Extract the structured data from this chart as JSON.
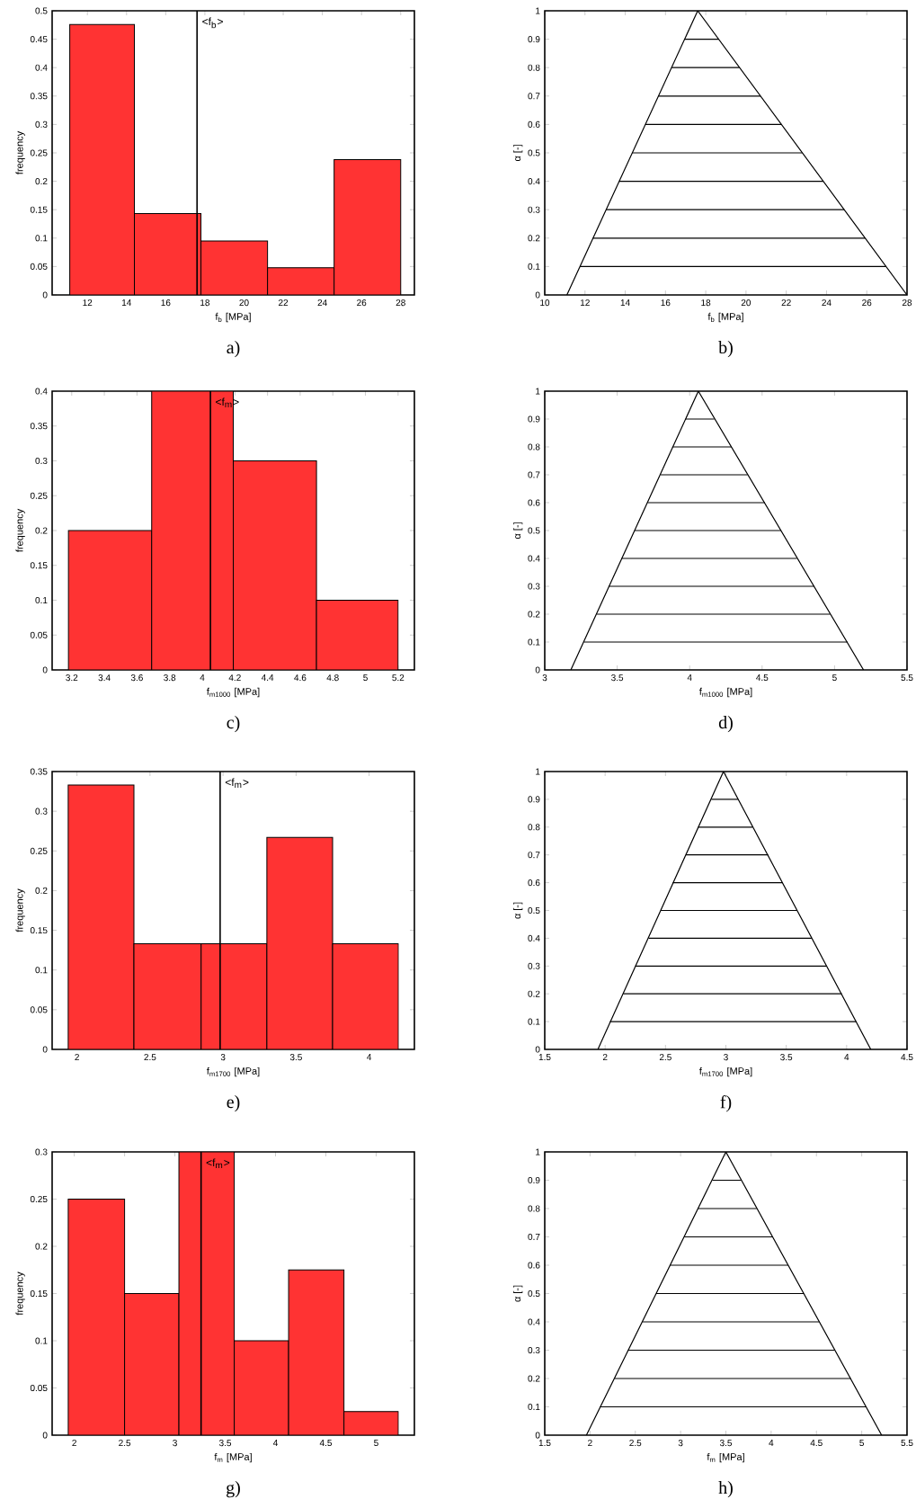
{
  "chart_data": [
    {
      "type": "histogram",
      "bins": [
        11.1,
        14.4,
        17.8,
        21.2,
        24.6,
        28.0
      ],
      "values": [
        0.476,
        0.143,
        0.095,
        0.048,
        0.238
      ],
      "color": "#ff3333",
      "xlim": [
        10.2,
        28.7
      ],
      "xticks": [
        12,
        14,
        16,
        18,
        20,
        22,
        24,
        26,
        28
      ],
      "ylim": [
        0,
        0.5
      ],
      "yticks": [
        0,
        0.05,
        0.1,
        0.15,
        0.2,
        0.25,
        0.3,
        0.35,
        0.4,
        0.45,
        0.5
      ],
      "xlabel": "f$_{b}$ [MPa]",
      "ylabel": "frequency",
      "ref_lines": [
        {
          "axis": "x",
          "value": 17.6,
          "label": "<f$_{b}$>"
        }
      ],
      "annotations": [
        "a)"
      ]
    },
    {
      "type": "line",
      "series": [
        {
          "color": "#000000",
          "x": [
            11.1,
            17.6,
            28.0
          ],
          "values": [
            0,
            1,
            0
          ]
        },
        {
          "color": "#000000",
          "x": [
            11.75,
            26.96
          ],
          "values": [
            0.1,
            0.1
          ]
        },
        {
          "color": "#000000",
          "x": [
            12.4,
            25.92
          ],
          "values": [
            0.2,
            0.2
          ]
        },
        {
          "color": "#000000",
          "x": [
            13.05,
            24.88
          ],
          "values": [
            0.3,
            0.3
          ]
        },
        {
          "color": "#000000",
          "x": [
            13.7,
            23.84
          ],
          "values": [
            0.4,
            0.4
          ]
        },
        {
          "color": "#000000",
          "x": [
            14.35,
            22.8
          ],
          "values": [
            0.5,
            0.5
          ]
        },
        {
          "color": "#000000",
          "x": [
            15.0,
            21.76
          ],
          "values": [
            0.6,
            0.6
          ]
        },
        {
          "color": "#000000",
          "x": [
            15.65,
            20.72
          ],
          "values": [
            0.7,
            0.7
          ]
        },
        {
          "color": "#000000",
          "x": [
            16.3,
            19.68
          ],
          "values": [
            0.8,
            0.8
          ]
        },
        {
          "color": "#000000",
          "x": [
            16.95,
            18.64
          ],
          "values": [
            0.9,
            0.9
          ]
        }
      ],
      "xlim": [
        10,
        28
      ],
      "xticks": [
        10,
        12,
        14,
        16,
        18,
        20,
        22,
        24,
        26,
        28
      ],
      "ylim": [
        0,
        1
      ],
      "yticks": [
        0,
        0.1,
        0.2,
        0.3,
        0.4,
        0.5,
        0.6,
        0.7,
        0.8,
        0.9,
        1
      ],
      "xlabel": "f$_{b}$ [MPa]",
      "ylabel": "α [-]",
      "annotations": [
        "b)"
      ]
    },
    {
      "type": "histogram",
      "bins": [
        3.18,
        3.69,
        4.19,
        4.7,
        5.2
      ],
      "values": [
        0.2,
        0.4,
        0.3,
        0.1
      ],
      "color": "#ff3333",
      "xlim": [
        3.08,
        5.3
      ],
      "xticks": [
        3.2,
        3.4,
        3.6,
        3.8,
        4,
        4.2,
        4.4,
        4.6,
        4.8,
        5,
        5.2
      ],
      "ylim": [
        0,
        0.4
      ],
      "yticks": [
        0,
        0.05,
        0.1,
        0.15,
        0.2,
        0.25,
        0.3,
        0.35,
        0.4
      ],
      "xlabel": "f$_{m1000}$ [MPa]",
      "ylabel": "frequency",
      "ref_lines": [
        {
          "axis": "x",
          "value": 4.05,
          "label": "<f$_{m}$>"
        }
      ],
      "annotations": [
        "c)"
      ]
    },
    {
      "type": "line",
      "series": [
        {
          "color": "#000000",
          "x": [
            3.18,
            4.06,
            5.2
          ],
          "values": [
            0,
            1,
            0
          ]
        },
        {
          "color": "#000000",
          "x": [
            3.27,
            5.09
          ],
          "values": [
            0.1,
            0.1
          ]
        },
        {
          "color": "#000000",
          "x": [
            3.36,
            4.97
          ],
          "values": [
            0.2,
            0.2
          ]
        },
        {
          "color": "#000000",
          "x": [
            3.44,
            4.86
          ],
          "values": [
            0.3,
            0.3
          ]
        },
        {
          "color": "#000000",
          "x": [
            3.53,
            4.74
          ],
          "values": [
            0.4,
            0.4
          ]
        },
        {
          "color": "#000000",
          "x": [
            3.62,
            4.63
          ],
          "values": [
            0.5,
            0.5
          ]
        },
        {
          "color": "#000000",
          "x": [
            3.71,
            4.52
          ],
          "values": [
            0.6,
            0.6
          ]
        },
        {
          "color": "#000000",
          "x": [
            3.8,
            4.4
          ],
          "values": [
            0.7,
            0.7
          ]
        },
        {
          "color": "#000000",
          "x": [
            3.88,
            4.29
          ],
          "values": [
            0.8,
            0.8
          ]
        },
        {
          "color": "#000000",
          "x": [
            3.97,
            4.17
          ],
          "values": [
            0.9,
            0.9
          ]
        }
      ],
      "xlim": [
        3,
        5.5
      ],
      "xticks": [
        3,
        3.5,
        4,
        4.5,
        5,
        5.5
      ],
      "ylim": [
        0,
        1
      ],
      "yticks": [
        0,
        0.1,
        0.2,
        0.3,
        0.4,
        0.5,
        0.6,
        0.7,
        0.8,
        0.9,
        1
      ],
      "xlabel": "f$_{m1000}$ [MPa]",
      "ylabel": "α [-]",
      "annotations": [
        "d)"
      ]
    },
    {
      "type": "histogram",
      "bins": [
        1.94,
        2.39,
        2.85,
        3.3,
        3.75,
        4.2
      ],
      "values": [
        0.333,
        0.133,
        0.133,
        0.267,
        0.133
      ],
      "color": "#ff3333",
      "xlim": [
        1.83,
        4.31
      ],
      "xticks": [
        2,
        2.5,
        3,
        3.5,
        4
      ],
      "ylim": [
        0,
        0.35
      ],
      "yticks": [
        0,
        0.05,
        0.1,
        0.15,
        0.2,
        0.25,
        0.3,
        0.35
      ],
      "xlabel": "f$_{m1700}$ [MPa]",
      "ylabel": "frequency",
      "ref_lines": [
        {
          "axis": "x",
          "value": 2.98,
          "label": "<f$_{m}$>"
        }
      ],
      "annotations": [
        "e)"
      ]
    },
    {
      "type": "line",
      "series": [
        {
          "color": "#000000",
          "x": [
            1.94,
            2.98,
            4.2
          ],
          "values": [
            0,
            1,
            0
          ]
        },
        {
          "color": "#000000",
          "x": [
            2.04,
            4.08
          ],
          "values": [
            0.1,
            0.1
          ]
        },
        {
          "color": "#000000",
          "x": [
            2.15,
            3.96
          ],
          "values": [
            0.2,
            0.2
          ]
        },
        {
          "color": "#000000",
          "x": [
            2.25,
            3.83
          ],
          "values": [
            0.3,
            0.3
          ]
        },
        {
          "color": "#000000",
          "x": [
            2.36,
            3.71
          ],
          "values": [
            0.4,
            0.4
          ]
        },
        {
          "color": "#000000",
          "x": [
            2.46,
            3.59
          ],
          "values": [
            0.5,
            0.5
          ]
        },
        {
          "color": "#000000",
          "x": [
            2.56,
            3.47
          ],
          "values": [
            0.6,
            0.6
          ]
        },
        {
          "color": "#000000",
          "x": [
            2.67,
            3.35
          ],
          "values": [
            0.7,
            0.7
          ]
        },
        {
          "color": "#000000",
          "x": [
            2.77,
            3.22
          ],
          "values": [
            0.8,
            0.8
          ]
        },
        {
          "color": "#000000",
          "x": [
            2.88,
            3.1
          ],
          "values": [
            0.9,
            0.9
          ]
        }
      ],
      "xlim": [
        1.5,
        4.5
      ],
      "xticks": [
        1.5,
        2,
        2.5,
        3,
        3.5,
        4,
        4.5
      ],
      "ylim": [
        0,
        1
      ],
      "yticks": [
        0,
        0.1,
        0.2,
        0.3,
        0.4,
        0.5,
        0.6,
        0.7,
        0.8,
        0.9,
        1
      ],
      "xlabel": "f$_{m1700}$ [MPa]",
      "ylabel": "α [-]",
      "annotations": [
        "f)"
      ]
    },
    {
      "type": "histogram",
      "bins": [
        1.94,
        2.5,
        3.04,
        3.59,
        4.13,
        4.68,
        5.22
      ],
      "values": [
        0.25,
        0.15,
        0.3,
        0.1,
        0.175,
        0.025
      ],
      "color": "#ff3333",
      "xlim": [
        1.78,
        5.38
      ],
      "xticks": [
        2,
        2.5,
        3,
        3.5,
        4,
        4.5,
        5
      ],
      "ylim": [
        0,
        0.3
      ],
      "yticks": [
        0,
        0.05,
        0.1,
        0.15,
        0.2,
        0.25,
        0.3
      ],
      "xlabel": "f$_{m}$ [MPa]",
      "ylabel": "frequency",
      "ref_lines": [
        {
          "axis": "x",
          "value": 3.26,
          "label": "<f$_{m}$>"
        }
      ],
      "annotations": [
        "g)"
      ]
    },
    {
      "type": "line",
      "series": [
        {
          "color": "#000000",
          "x": [
            1.96,
            3.5,
            5.22
          ],
          "values": [
            0,
            1,
            0
          ]
        },
        {
          "color": "#000000",
          "x": [
            2.11,
            5.05
          ],
          "values": [
            0.1,
            0.1
          ]
        },
        {
          "color": "#000000",
          "x": [
            2.27,
            4.88
          ],
          "values": [
            0.2,
            0.2
          ]
        },
        {
          "color": "#000000",
          "x": [
            2.42,
            4.7
          ],
          "values": [
            0.3,
            0.3
          ]
        },
        {
          "color": "#000000",
          "x": [
            2.58,
            4.53
          ],
          "values": [
            0.4,
            0.4
          ]
        },
        {
          "color": "#000000",
          "x": [
            2.73,
            4.36
          ],
          "values": [
            0.5,
            0.5
          ]
        },
        {
          "color": "#000000",
          "x": [
            2.88,
            4.19
          ],
          "values": [
            0.6,
            0.6
          ]
        },
        {
          "color": "#000000",
          "x": [
            3.04,
            4.02
          ],
          "values": [
            0.7,
            0.7
          ]
        },
        {
          "color": "#000000",
          "x": [
            3.19,
            3.84
          ],
          "values": [
            0.8,
            0.8
          ]
        },
        {
          "color": "#000000",
          "x": [
            3.35,
            3.67
          ],
          "values": [
            0.9,
            0.9
          ]
        }
      ],
      "xlim": [
        1.5,
        5.5
      ],
      "xticks": [
        1.5,
        2,
        2.5,
        3,
        3.5,
        4,
        4.5,
        5,
        5.5
      ],
      "ylim": [
        0,
        1
      ],
      "yticks": [
        0,
        0.1,
        0.2,
        0.3,
        0.4,
        0.5,
        0.6,
        0.7,
        0.8,
        0.9,
        1
      ],
      "xlabel": "f$_{m}$ [MPa]",
      "ylabel": "α [-]",
      "annotations": [
        "h)"
      ]
    }
  ]
}
